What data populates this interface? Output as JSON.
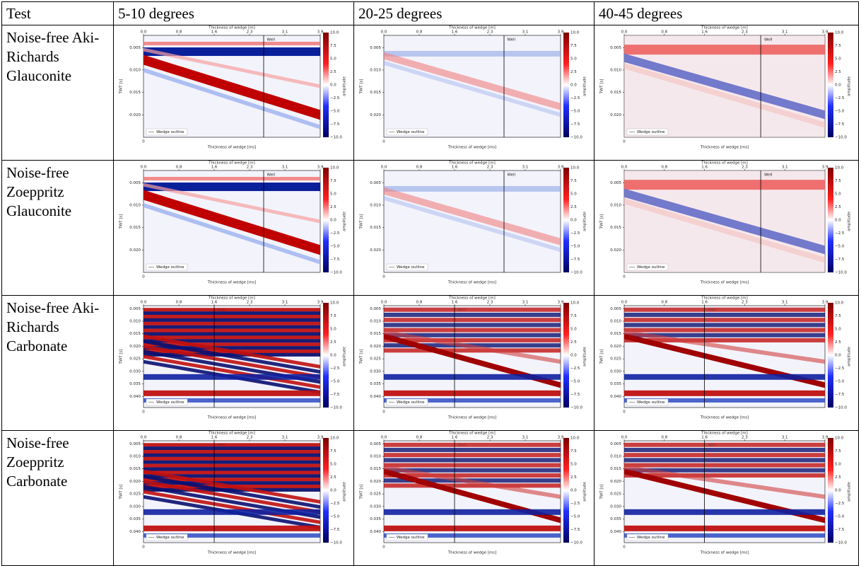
{
  "table": {
    "header": [
      "Test",
      "5-10 degrees",
      "20-25 degrees",
      "40-45 degrees"
    ],
    "rows": [
      {
        "test": "Noise-free Aki-Richards Glauconite",
        "axes": {
          "top_label": "Thickness of wedge [m]",
          "top_ticks": [
            "0.0",
            "0.8",
            "1.6",
            "2.3",
            "3.1",
            "3.9"
          ],
          "y_label": "TWT [s]",
          "y_ticks": [
            "0.005",
            "0.010",
            "0.015",
            "0.020"
          ],
          "bottom_label": "Thickness of wedge [ms]",
          "bottom_tick": "0",
          "colorbar_label": "amplitude",
          "colorbar_ticks": [
            "10.0",
            "7.5",
            "5.0",
            "2.5",
            "0.0",
            "−2.5",
            "−5.0",
            "−7.5",
            "−10.0"
          ],
          "legend": "Wedge outline",
          "well": "Well"
        }
      },
      {
        "test": "Noise-free Zoeppritz Glauconite",
        "axes": {
          "top_label": "Thickness of wedge [m]",
          "top_ticks": [
            "0.0",
            "0.8",
            "1.6",
            "2.3",
            "3.1",
            "3.9"
          ],
          "y_label": "TWT [s]",
          "y_ticks": [
            "0.005",
            "0.010",
            "0.015",
            "0.020"
          ],
          "bottom_label": "Thickness of wedge [ms]",
          "bottom_tick": "0",
          "colorbar_label": "amplitude",
          "colorbar_ticks": [
            "10.0",
            "7.5",
            "5.0",
            "2.5",
            "0.0",
            "−2.5",
            "−5.0",
            "−7.5",
            "−10.0"
          ],
          "legend": "Wedge outline",
          "well": "Well"
        }
      },
      {
        "test": "Noise-free Aki-Richards Carbonate",
        "axes": {
          "top_label": "Thickness of wedge [m]",
          "top_ticks": [
            "0.0",
            "0.8",
            "1.6",
            "2.3",
            "3.1",
            "3.9"
          ],
          "y_label": "TWT [s]",
          "y_ticks": [
            "0.005",
            "0.010",
            "0.015",
            "0.020",
            "0.025",
            "0.030",
            "0.035",
            "0.040"
          ],
          "bottom_label": "Thickness of wedge [ms]",
          "bottom_tick": "0",
          "colorbar_label": "amplitude",
          "colorbar_ticks": [
            "10.0",
            "7.5",
            "5.0",
            "2.5",
            "0.0",
            "−2.5",
            "−5.0",
            "−7.5",
            "−10.0"
          ],
          "legend": "Wedge outline",
          "well": "Well"
        }
      },
      {
        "test": "Noise-free Zoeppritz Carbonate",
        "axes": {
          "top_label": "Thickness of wedge [m]",
          "top_ticks": [
            "0.0",
            "0.8",
            "1.6",
            "2.3",
            "3.1",
            "3.9"
          ],
          "y_label": "TWT [s]",
          "y_ticks": [
            "0.005",
            "0.010",
            "0.015",
            "0.020",
            "0.025",
            "0.030",
            "0.035",
            "0.040"
          ],
          "bottom_label": "Thickness of wedge [ms]",
          "bottom_tick": "0",
          "colorbar_label": "amplitude",
          "colorbar_ticks": [
            "10.0",
            "7.5",
            "5.0",
            "2.5",
            "0.0",
            "−2.5",
            "−5.0",
            "−7.5",
            "−10.0"
          ],
          "legend": "Wedge outline",
          "well": "Well"
        }
      }
    ]
  }
}
